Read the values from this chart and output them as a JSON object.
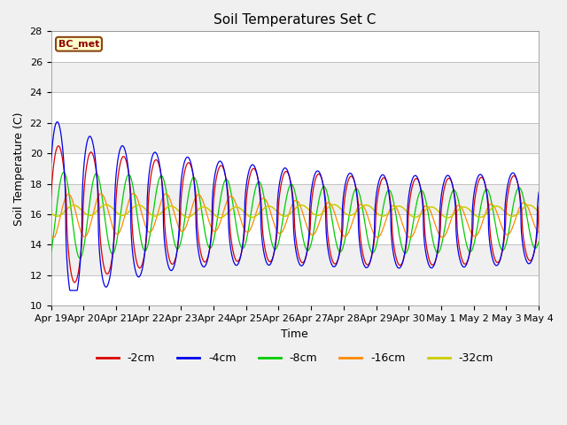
{
  "title": "Soil Temperatures Set C",
  "xlabel": "Time",
  "ylabel": "Soil Temperature (C)",
  "ylim": [
    10,
    28
  ],
  "annotation": "BC_met",
  "legend_labels": [
    "-2cm",
    "-4cm",
    "-8cm",
    "-16cm",
    "-32cm"
  ],
  "legend_colors": [
    "#dd0000",
    "#0000ee",
    "#00cc00",
    "#ff8800",
    "#cccc00"
  ],
  "background_color": "#f0f0f0",
  "tick_labels": [
    "Apr 19",
    "Apr 20",
    "Apr 21",
    "Apr 22",
    "Apr 23",
    "Apr 24",
    "Apr 25",
    "Apr 26",
    "Apr 27",
    "Apr 28",
    "Apr 29",
    "Apr 30",
    "May 1",
    "May 2",
    "May 3",
    "May 4"
  ],
  "n_points": 1440,
  "days": 15,
  "yticks": [
    10,
    12,
    14,
    16,
    18,
    20,
    22,
    24,
    26,
    28
  ]
}
